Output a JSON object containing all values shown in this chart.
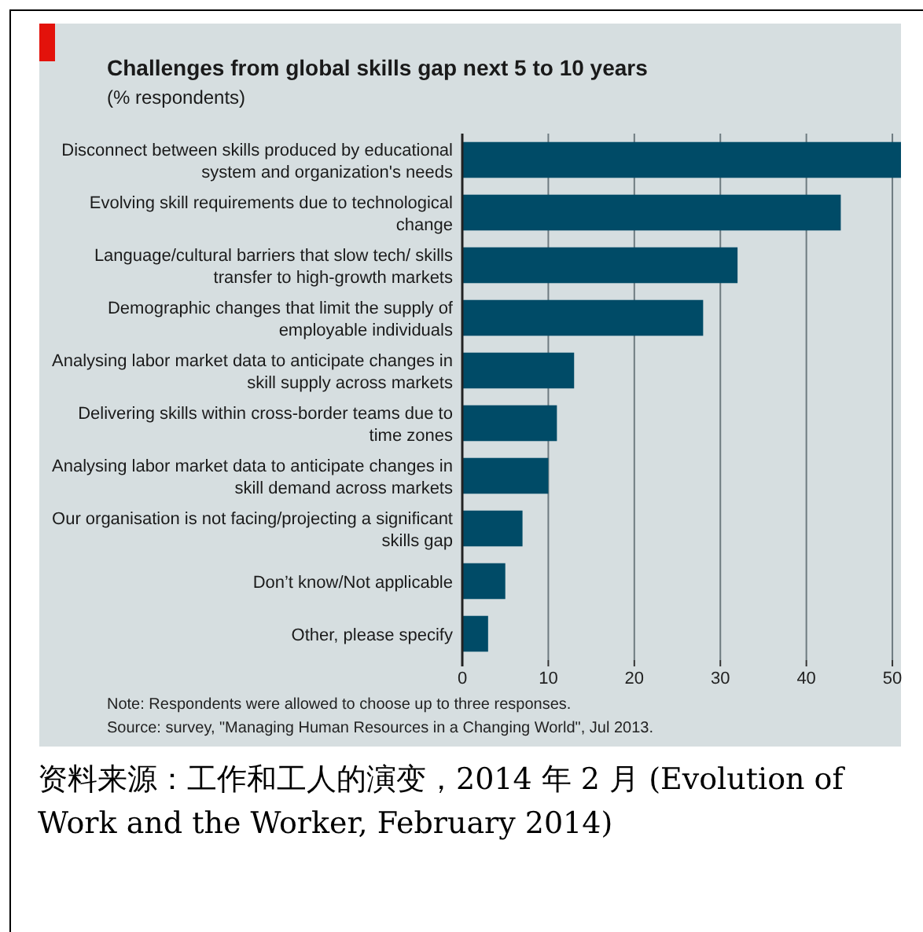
{
  "chart_data": {
    "type": "bar",
    "orientation": "horizontal",
    "title": "Challenges from global skills gap next 5 to 10 years",
    "subtitle": "(% respondents)",
    "categories": [
      "Disconnect between skills produced by educational system and organization's needs",
      "Evolving skill requirements due to technological change",
      "Language/cultural barriers that slow tech/ skills transfer to high-growth markets",
      "Demographic changes that limit the supply of employable individuals",
      "Analysing labor market data to anticipate changes in skill supply across markets",
      "Delivering skills within cross-border teams due to time zones",
      "Analysing labor market data to anticipate changes in skill demand across markets",
      "Our organisation is not facing/projecting a significant skills gap",
      "Don’t know/Not applicable",
      "Other, please specify"
    ],
    "values": [
      51,
      44,
      32,
      28,
      13,
      11,
      10,
      7,
      5,
      3
    ],
    "color": "#004b67",
    "xlim": [
      0,
      51
    ],
    "xticks": [
      0,
      10,
      20,
      30,
      40,
      50
    ],
    "grid": "x",
    "annotations": [
      "Note: Respondents were allowed to choose up to three responses.",
      "Source: survey, \"Managing Human Resources in a Changing World\", Jul 2013.",
      "资料来源：工作和工人的演变，2014 年 2 月 (Evolution of Work and the Worker, February 2014)"
    ]
  }
}
